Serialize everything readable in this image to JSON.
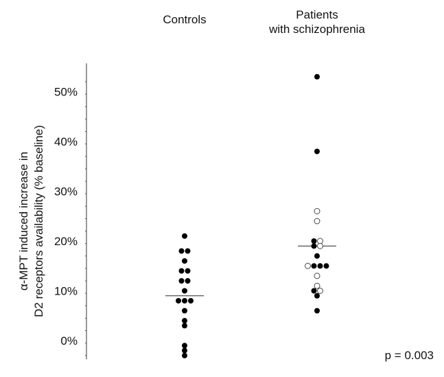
{
  "chart_data": {
    "type": "scatter",
    "title": "",
    "ylabel_lines": [
      "α-MPT induced increase in",
      "D2 receptors availability (% baseline)"
    ],
    "ylim": [
      -3.5,
      55
    ],
    "yticks": [
      {
        "value": 0,
        "label": "0%"
      },
      {
        "value": 10,
        "label": "10%"
      },
      {
        "value": 20,
        "label": "20%"
      },
      {
        "value": 30,
        "label": "30%"
      },
      {
        "value": 40,
        "label": "40%"
      },
      {
        "value": 50,
        "label": "50%"
      }
    ],
    "groups": [
      {
        "label_lines": [
          "Controls"
        ],
        "mean": 9,
        "points": [
          {
            "y": 21,
            "dx": 0,
            "filled": true
          },
          {
            "y": 18,
            "dx": -0.5,
            "filled": true
          },
          {
            "y": 18,
            "dx": 0.5,
            "filled": true
          },
          {
            "y": 16,
            "dx": 0,
            "filled": true
          },
          {
            "y": 14,
            "dx": -0.5,
            "filled": true
          },
          {
            "y": 14,
            "dx": 0.5,
            "filled": true
          },
          {
            "y": 12,
            "dx": -0.5,
            "filled": true
          },
          {
            "y": 12,
            "dx": 0.5,
            "filled": true
          },
          {
            "y": 10,
            "dx": 0,
            "filled": true
          },
          {
            "y": 8,
            "dx": -1,
            "filled": true
          },
          {
            "y": 8,
            "dx": 0,
            "filled": true
          },
          {
            "y": 8,
            "dx": 1,
            "filled": true
          },
          {
            "y": 6,
            "dx": 0,
            "filled": true
          },
          {
            "y": 4,
            "dx": 0,
            "filled": true
          },
          {
            "y": 3,
            "dx": 0,
            "filled": true
          },
          {
            "y": -1,
            "dx": 0,
            "filled": true
          },
          {
            "y": -2,
            "dx": 0,
            "filled": true
          },
          {
            "y": -3,
            "dx": 0,
            "filled": true
          }
        ]
      },
      {
        "label_lines": [
          "Patients",
          "with schizophrenia"
        ],
        "mean": 19,
        "points": [
          {
            "y": 53,
            "dx": 0,
            "filled": true
          },
          {
            "y": 38,
            "dx": 0,
            "filled": true
          },
          {
            "y": 26,
            "dx": 0,
            "filled": false
          },
          {
            "y": 24,
            "dx": 0,
            "filled": false
          },
          {
            "y": 20,
            "dx": -0.5,
            "filled": true
          },
          {
            "y": 20,
            "dx": 0.5,
            "filled": false
          },
          {
            "y": 19,
            "dx": -0.5,
            "filled": true
          },
          {
            "y": 19,
            "dx": 0.5,
            "filled": false
          },
          {
            "y": 17,
            "dx": 0,
            "filled": true
          },
          {
            "y": 15,
            "dx": -1.5,
            "filled": false
          },
          {
            "y": 15,
            "dx": -0.5,
            "filled": true
          },
          {
            "y": 15,
            "dx": 0.5,
            "filled": true
          },
          {
            "y": 15,
            "dx": 1.5,
            "filled": true
          },
          {
            "y": 13,
            "dx": 0,
            "filled": false
          },
          {
            "y": 11,
            "dx": 0,
            "filled": false
          },
          {
            "y": 10,
            "dx": -0.5,
            "filled": true
          },
          {
            "y": 10,
            "dx": 0.5,
            "filled": false
          },
          {
            "y": 9,
            "dx": 0,
            "filled": true
          },
          {
            "y": 6,
            "dx": 0,
            "filled": true
          }
        ]
      }
    ],
    "annotation": "p = 0.003",
    "grid": false,
    "legend": "none"
  }
}
